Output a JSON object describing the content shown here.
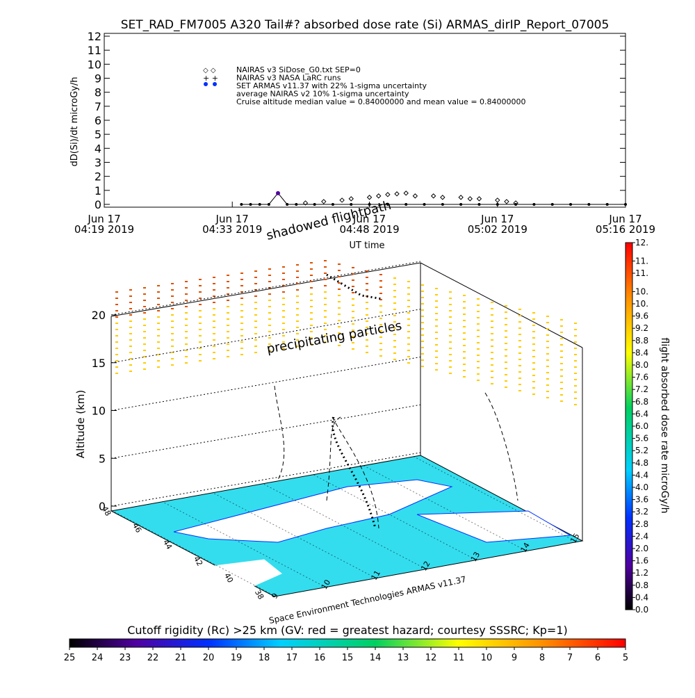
{
  "chart_data": [
    {
      "type": "line",
      "title": "SET_RAD_FM7005  A320 Tail#? absorbed dose rate (Si) ARMAS_dirIP_Report_07005",
      "ylabel": "dD(Si)/dt microGy/h",
      "xlabel": "UT time",
      "xlim": [
        "04:19",
        "05:16"
      ],
      "xticks": [
        {
          "value": "04:19",
          "label": [
            "Jun 17",
            "04:19 2019"
          ]
        },
        {
          "value": "04:33",
          "label": [
            "Jun 17",
            "04:33 2019"
          ]
        },
        {
          "value": "04:48",
          "label": [
            "Jun 17",
            "04:48 2019"
          ]
        },
        {
          "value": "05:02",
          "label": [
            "Jun 17",
            "05:02 2019"
          ]
        },
        {
          "value": "05:16",
          "label": [
            "Jun 17",
            "05:16 2019"
          ]
        }
      ],
      "ylim": [
        -0.2,
        12.2
      ],
      "yticks": [
        0,
        1,
        2,
        3,
        4,
        5,
        6,
        7,
        8,
        9,
        10,
        11,
        12
      ],
      "legend": [
        "NAIRAS v3 SiDose_G0.txt SEP=0",
        "NAIRAS v3 NASA LaRC runs",
        "SET ARMAS v11.37 with 22% 1-sigma uncertainty",
        "average NAIRAS v2 10% 1-sigma uncertainty",
        "Cruise altitude median value = 0.84000000 and mean value = 0.84000000"
      ],
      "series": [
        {
          "name": "NAIRAS v3",
          "color": "#000000",
          "marker": "diamond",
          "x": [
            "04:41",
            "04:43",
            "04:45",
            "04:46",
            "04:48",
            "04:49",
            "04:50",
            "04:51",
            "04:52",
            "04:53",
            "04:55",
            "04:56",
            "04:58",
            "04:59",
            "05:00",
            "05:02",
            "05:03",
            "05:04"
          ],
          "values": [
            0.1,
            0.2,
            0.3,
            0.4,
            0.5,
            0.6,
            0.7,
            0.75,
            0.8,
            0.6,
            0.6,
            0.5,
            0.5,
            0.4,
            0.4,
            0.3,
            0.2,
            0.1
          ]
        },
        {
          "name": "SET ARMAS v11.37",
          "color": "#000000",
          "marker": "dot",
          "x": [
            "04:34",
            "04:35",
            "04:36",
            "04:37",
            "04:38",
            "04:39",
            "04:40",
            "04:42",
            "04:44",
            "04:46",
            "04:48",
            "04:50",
            "04:52",
            "04:54",
            "04:56",
            "04:58",
            "05:00",
            "05:02",
            "05:04",
            "05:06",
            "05:08",
            "05:10",
            "05:12",
            "05:14",
            "05:16"
          ],
          "values": [
            0,
            0,
            0,
            0,
            0.8,
            0,
            0,
            0,
            0,
            0,
            0,
            0,
            0,
            0,
            0,
            0,
            0,
            0,
            0,
            0,
            0,
            0,
            0,
            0,
            0
          ]
        }
      ]
    },
    {
      "type": "scene3d",
      "zlabel": "Altitude (km)",
      "zlim": [
        0,
        20
      ],
      "zticks": [
        0,
        5,
        10,
        15,
        20
      ],
      "latticks": [
        48,
        46,
        44,
        42,
        40,
        38
      ],
      "lonticks": [
        9,
        10,
        11,
        12,
        13,
        14,
        15
      ],
      "annotations": [
        "shadowed flightpath",
        "precipitating particles"
      ],
      "credit": "Space Environment Technologies ARMAS v11.37"
    },
    {
      "type": "colorbar",
      "label": "flight absorbed dose rate microGy/h",
      "ylim": [
        0,
        12
      ],
      "yticks": [
        {
          "value": 0,
          "label": "0.0"
        },
        {
          "value": 0.4,
          "label": "0.4"
        },
        {
          "value": 0.8,
          "label": "0.8"
        },
        {
          "value": 1.2,
          "label": "1.2"
        },
        {
          "value": 1.6,
          "label": "1.6"
        },
        {
          "value": 2,
          "label": "2.0"
        },
        {
          "value": 2.4,
          "label": "2.4"
        },
        {
          "value": 2.8,
          "label": "2.8"
        },
        {
          "value": 3.2,
          "label": "3.2"
        },
        {
          "value": 3.6,
          "label": "3.6"
        },
        {
          "value": 4,
          "label": "4.0"
        },
        {
          "value": 4.4,
          "label": "4.4"
        },
        {
          "value": 4.8,
          "label": "4.8"
        },
        {
          "value": 5.2,
          "label": "5.2"
        },
        {
          "value": 5.6,
          "label": "5.6"
        },
        {
          "value": 6,
          "label": "6.0"
        },
        {
          "value": 6.4,
          "label": "6.4"
        },
        {
          "value": 6.8,
          "label": "6.8"
        },
        {
          "value": 7.2,
          "label": "7.2"
        },
        {
          "value": 7.6,
          "label": "7.6"
        },
        {
          "value": 8,
          "label": "8.0"
        },
        {
          "value": 8.4,
          "label": "8.4"
        },
        {
          "value": 8.8,
          "label": "8.8"
        },
        {
          "value": 9.2,
          "label": "9.2"
        },
        {
          "value": 9.6,
          "label": "9.6"
        },
        {
          "value": 10,
          "label": "10."
        },
        {
          "value": 10.4,
          "label": "10."
        },
        {
          "value": 11,
          "label": "11."
        },
        {
          "value": 11.4,
          "label": "11."
        },
        {
          "value": 12,
          "label": "12."
        }
      ]
    },
    {
      "type": "colorbar",
      "label": "Cutoff rigidity (Rc) >25 km (GV: red = greatest hazard; courtesy SSSRC; Kp=1)",
      "xlim": [
        25,
        5
      ],
      "xticks": [
        25,
        24,
        23,
        22,
        21,
        20,
        19,
        18,
        17,
        16,
        15,
        14,
        13,
        12,
        11,
        10,
        9,
        8,
        7,
        6,
        5
      ]
    }
  ]
}
